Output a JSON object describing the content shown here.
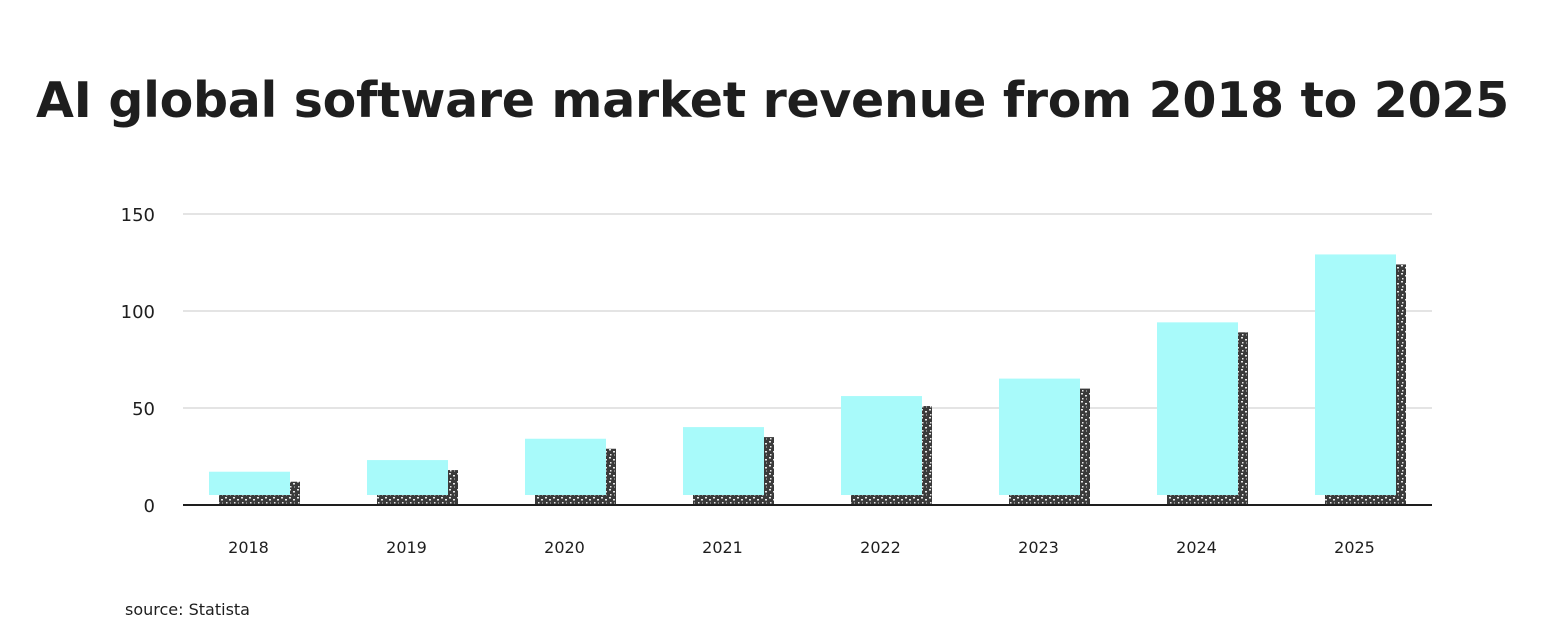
{
  "chart_data": {
    "type": "bar",
    "title": "AI global software market revenue from 2018 to 2025",
    "xlabel": "",
    "ylabel": "",
    "categories": [
      "2018",
      "2019",
      "2020",
      "2021",
      "2022",
      "2023",
      "2024",
      "2025"
    ],
    "values": [
      12,
      18,
      29,
      35,
      51,
      60,
      89,
      124
    ],
    "ylim": [
      0,
      150
    ],
    "yticks": [
      0,
      50,
      100,
      150
    ],
    "ytick_labels": [
      "0",
      "50",
      "100",
      "150"
    ],
    "grid": true,
    "legend": "none",
    "colors": {
      "bar_fill": "#a8fafa",
      "shadow": "#3a3a3a",
      "grid": "#c8c8c8",
      "axis": "#1e1e1e"
    }
  },
  "source": {
    "text": "source: Statista"
  }
}
